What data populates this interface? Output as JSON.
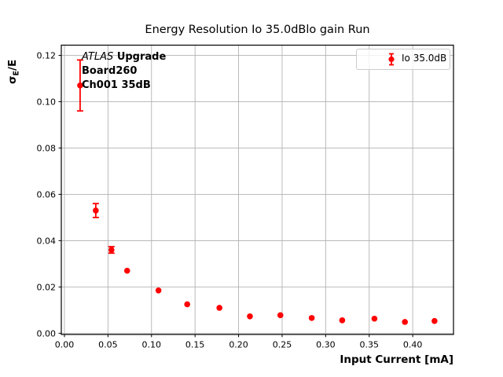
{
  "title": "Energy Resolution Io 35.0dBlo gain Run",
  "axes": {
    "xlabel": "Input Current [mA]",
    "ylabel_sigma": "σ",
    "ylabel_sub": "E",
    "ylabel_rest": "/E"
  },
  "annotation": {
    "experiment": "ATLAS",
    "experiment_suffix": "Upgrade",
    "board": "Board260",
    "channel": "Ch001 35dB"
  },
  "legend": {
    "label": "Io 35.0dB"
  },
  "colors": {
    "series": "#ff0000",
    "grid": "#b2b2b2",
    "spine": "#000000",
    "legend_border": "#cccccc"
  },
  "chart_data": {
    "type": "scatter",
    "title": "Energy Resolution Io 35.0dBlo gain Run",
    "xlabel": "Input Current [mA]",
    "ylabel": "σ_E/E",
    "grid": true,
    "legend_position": "upper right",
    "xlim": [
      -0.0036,
      0.4468
    ],
    "ylim": [
      -0.0005,
      0.1244
    ],
    "xticks": [
      0.0,
      0.05,
      0.1,
      0.15,
      0.2,
      0.25,
      0.3,
      0.35,
      0.4
    ],
    "yticks": [
      0.0,
      0.02,
      0.04,
      0.06,
      0.08,
      0.1,
      0.12
    ],
    "series": [
      {
        "name": "Io 35.0dB",
        "color": "#ff0000",
        "marker": "o",
        "x": [
          0.018,
          0.036,
          0.054,
          0.072,
          0.108,
          0.141,
          0.178,
          0.213,
          0.248,
          0.284,
          0.319,
          0.356,
          0.391,
          0.425
        ],
        "y": [
          0.107,
          0.053,
          0.036,
          0.027,
          0.0185,
          0.0125,
          0.011,
          0.0073,
          0.0078,
          0.0066,
          0.0056,
          0.0063,
          0.0049,
          0.0053
        ],
        "yerr": [
          0.011,
          0.003,
          0.0014,
          0.0008,
          0.0005,
          0.0003,
          0.0003,
          0.0002,
          0.0002,
          0.0002,
          0.0002,
          0.0002,
          0.0002,
          0.0002
        ]
      }
    ]
  }
}
